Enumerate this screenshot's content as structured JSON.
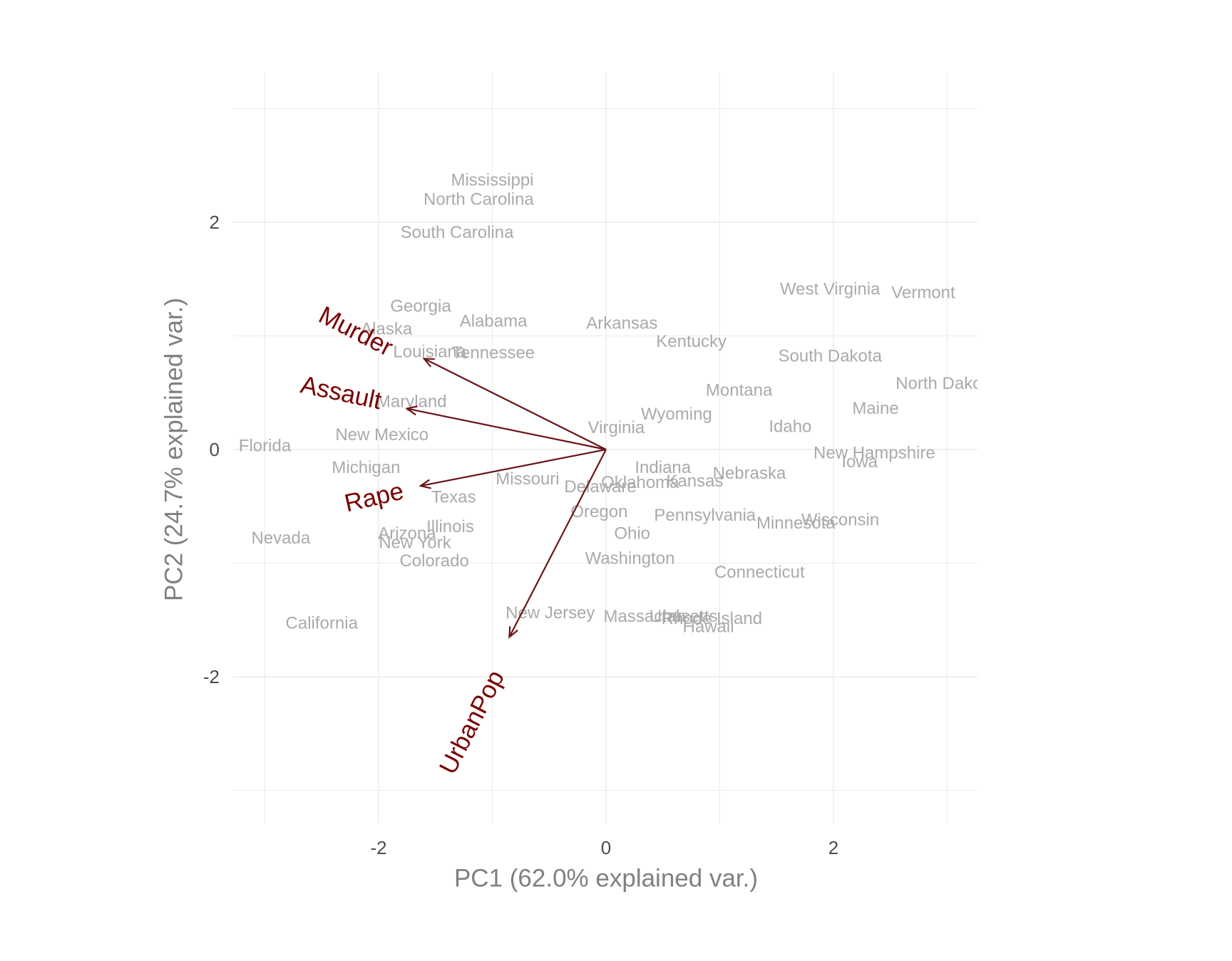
{
  "chart_data": {
    "type": "scatter",
    "title": "",
    "xlabel": "PC1 (62.0% explained var.)",
    "ylabel": "PC2 (24.7% explained var.)",
    "xlim": [
      -3.3,
      3.3
    ],
    "ylim": [
      -3.3,
      3.3
    ],
    "x_ticks": [
      -2,
      0,
      2
    ],
    "y_ticks": [
      -2,
      0,
      2
    ],
    "x_tick_labels": [
      "-2",
      "0",
      "2"
    ],
    "y_tick_labels": [
      "-2",
      "0",
      "2"
    ],
    "grid": true,
    "colors": {
      "points": "#aaaaaa",
      "arrows": "#6b1416",
      "arrow_labels": "#7a0000",
      "grid": "#ebebeb",
      "axis_text": "#4d4d4d",
      "axis_title": "#808080"
    },
    "points": [
      {
        "label": "Mississippi",
        "x": -1.0,
        "y": 2.37
      },
      {
        "label": "North Carolina",
        "x": -1.12,
        "y": 2.2
      },
      {
        "label": "South Carolina",
        "x": -1.31,
        "y": 1.91
      },
      {
        "label": "Georgia",
        "x": -1.63,
        "y": 1.26
      },
      {
        "label": "Alaska",
        "x": -1.93,
        "y": 1.06
      },
      {
        "label": "Alabama",
        "x": -0.99,
        "y": 1.13
      },
      {
        "label": "Louisiana",
        "x": -1.55,
        "y": 0.86
      },
      {
        "label": "Tennessee",
        "x": -0.99,
        "y": 0.85
      },
      {
        "label": "Arkansas",
        "x": 0.14,
        "y": 1.11
      },
      {
        "label": "Kentucky",
        "x": 0.75,
        "y": 0.95
      },
      {
        "label": "West Virginia",
        "x": 1.97,
        "y": 1.41
      },
      {
        "label": "Vermont",
        "x": 2.79,
        "y": 1.38
      },
      {
        "label": "South Dakota",
        "x": 1.97,
        "y": 0.82
      },
      {
        "label": "North Dakota",
        "x": 2.99,
        "y": 0.58
      },
      {
        "label": "Montana",
        "x": 1.17,
        "y": 0.52
      },
      {
        "label": "Maine",
        "x": 2.37,
        "y": 0.36
      },
      {
        "label": "Wyoming",
        "x": 0.62,
        "y": 0.31
      },
      {
        "label": "Idaho",
        "x": 1.62,
        "y": 0.2
      },
      {
        "label": "Virginia",
        "x": 0.09,
        "y": 0.19
      },
      {
        "label": "Maryland",
        "x": -1.71,
        "y": 0.42
      },
      {
        "label": "New Mexico",
        "x": -1.97,
        "y": 0.13
      },
      {
        "label": "Florida",
        "x": -3.0,
        "y": 0.03
      },
      {
        "label": "New Hampshire",
        "x": 2.36,
        "y": -0.03
      },
      {
        "label": "Iowa",
        "x": 2.23,
        "y": -0.11
      },
      {
        "label": "Michigan",
        "x": -2.11,
        "y": -0.16
      },
      {
        "label": "Indiana",
        "x": 0.5,
        "y": -0.16
      },
      {
        "label": "Nebraska",
        "x": 1.26,
        "y": -0.21
      },
      {
        "label": "Missouri",
        "x": -0.69,
        "y": -0.26
      },
      {
        "label": "Oklahoma",
        "x": 0.3,
        "y": -0.29
      },
      {
        "label": "Kansas",
        "x": 0.78,
        "y": -0.28
      },
      {
        "label": "Delaware",
        "x": -0.05,
        "y": -0.33
      },
      {
        "label": "Texas",
        "x": -1.34,
        "y": -0.42
      },
      {
        "label": "Oregon",
        "x": -0.06,
        "y": -0.55
      },
      {
        "label": "Pennsylvania",
        "x": 0.87,
        "y": -0.58
      },
      {
        "label": "Minnesota",
        "x": 1.67,
        "y": -0.65
      },
      {
        "label": "Wisconsin",
        "x": 2.06,
        "y": -0.62
      },
      {
        "label": "Ohio",
        "x": 0.23,
        "y": -0.74
      },
      {
        "label": "Illinois",
        "x": -1.37,
        "y": -0.68
      },
      {
        "label": "Arizona",
        "x": -1.75,
        "y": -0.74
      },
      {
        "label": "Nevada",
        "x": -2.86,
        "y": -0.78
      },
      {
        "label": "New York",
        "x": -1.68,
        "y": -0.82
      },
      {
        "label": "Colorado",
        "x": -1.51,
        "y": -0.98
      },
      {
        "label": "Washington",
        "x": 0.21,
        "y": -0.96
      },
      {
        "label": "Connecticut",
        "x": 1.35,
        "y": -1.08
      },
      {
        "label": "New Jersey",
        "x": -0.49,
        "y": -1.44
      },
      {
        "label": "Massachusetts",
        "x": 0.48,
        "y": -1.47
      },
      {
        "label": "Utah",
        "x": 0.54,
        "y": -1.47
      },
      {
        "label": "Rhode Island",
        "x": 0.93,
        "y": -1.49
      },
      {
        "label": "Hawaii",
        "x": 0.9,
        "y": -1.56
      },
      {
        "label": "California",
        "x": -2.5,
        "y": -1.53
      }
    ],
    "loadings": [
      {
        "name": "Murder",
        "x": -1.6,
        "y": 0.8,
        "label_x": -2.2,
        "label_y": 1.04,
        "label_angle": 27
      },
      {
        "name": "Assault",
        "x": -1.75,
        "y": 0.36,
        "label_x": -2.33,
        "label_y": 0.5,
        "label_angle": 12
      },
      {
        "name": "Rape",
        "x": -1.63,
        "y": -0.32,
        "label_x": -2.04,
        "label_y": -0.42,
        "label_angle": -13
      },
      {
        "name": "UrbanPop",
        "x": -0.85,
        "y": -1.65,
        "label_x": -1.18,
        "label_y": -2.4,
        "label_angle": -63
      }
    ]
  }
}
